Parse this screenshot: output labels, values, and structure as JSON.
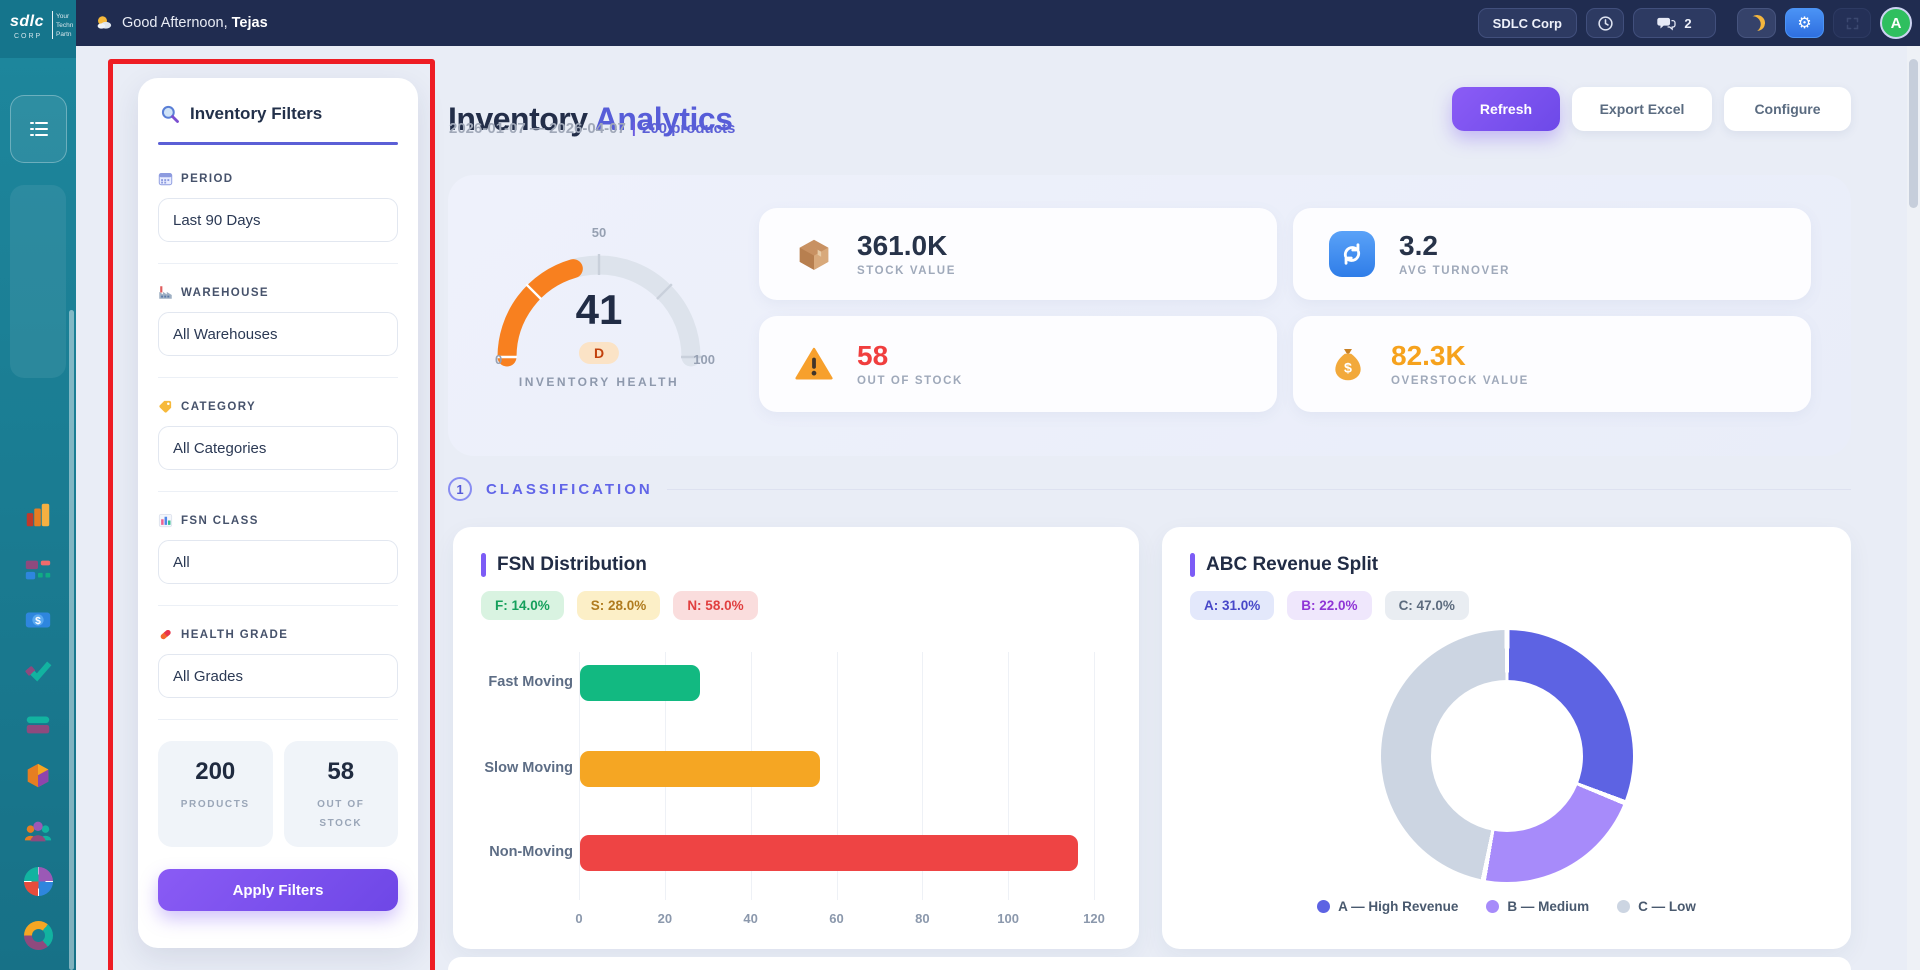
{
  "topbar": {
    "greeting": "Good Afternoon,",
    "user_name": "Tejas",
    "org_button": "SDLC Corp",
    "chat_count": "2",
    "gear_glyph": "⚙",
    "avatar_initial": "A",
    "icons": [
      "sun-cloud-icon",
      "clock-icon",
      "chat-icon",
      "moon-icon",
      "gear-icon",
      "fullscreen-icon"
    ]
  },
  "logo": {
    "brand": "sdlc",
    "sub": "CORP",
    "tag1": "Your",
    "tag2": "Techn",
    "tag3": "Partn"
  },
  "rail": {
    "icons": [
      "menu-icon",
      "bar-chart-icon",
      "tiles-icon",
      "money-icon",
      "check-icon",
      "layers-icon",
      "cube-icon",
      "people-icon",
      "pie-icon",
      "ring-icon"
    ]
  },
  "filters": {
    "title": "Inventory Filters",
    "sections": [
      {
        "icon": "calendar-icon",
        "label": "PERIOD",
        "value": "Last 90 Days"
      },
      {
        "icon": "factory-icon",
        "label": "WAREHOUSE",
        "value": "All Warehouses"
      },
      {
        "icon": "tag-icon",
        "label": "CATEGORY",
        "value": "All Categories"
      },
      {
        "icon": "bar-chart-icon",
        "label": "FSN CLASS",
        "value": "All"
      },
      {
        "icon": "pill-icon",
        "label": "HEALTH GRADE",
        "value": "All Grades"
      }
    ],
    "stats": [
      {
        "value": "200",
        "label": "PRODUCTS"
      },
      {
        "value": "58",
        "label": "OUT OF STOCK"
      }
    ],
    "apply_label": "Apply Filters"
  },
  "header": {
    "title_primary": "Inventory",
    "title_accent": "Analytics",
    "date_range": "2026-01-07 — 2026-04-07",
    "separator": "|",
    "product_count": "200 products",
    "refresh_label": "Refresh",
    "export_label": "Export Excel",
    "configure_label": "Configure"
  },
  "kpi": {
    "gauge": {
      "value": 41,
      "min": 0,
      "max": 100,
      "grade": "D",
      "label": "INVENTORY HEALTH",
      "tick_labels": [
        "0",
        "50",
        "100"
      ],
      "tick_marks": [
        0,
        25,
        50,
        75,
        100
      ],
      "color": "#f8801f",
      "track": "#dde3ec"
    },
    "cards": [
      {
        "icon": "package-icon",
        "value": "361.0K",
        "label": "STOCK VALUE",
        "value_color": "#273349"
      },
      {
        "icon": "refresh-cycle-icon",
        "value": "3.2",
        "label": "AVG TURNOVER",
        "value_color": "#273349"
      },
      {
        "icon": "warning-icon",
        "value": "58",
        "label": "OUT OF STOCK",
        "value_color": "#f03e3e"
      },
      {
        "icon": "money-bag-icon",
        "value": "82.3K",
        "label": "OVERSTOCK VALUE",
        "value_color": "#f6a21d"
      }
    ]
  },
  "section": {
    "number": "1",
    "title": "CLASSIFICATION"
  },
  "chart_data": [
    {
      "type": "bar",
      "title": "FSN Distribution",
      "orientation": "horizontal",
      "categories": [
        "Fast Moving",
        "Slow Moving",
        "Non-Moving"
      ],
      "values": [
        28,
        56,
        116
      ],
      "xlim": [
        0,
        120
      ],
      "grid": true
    },
    {
      "type": "pie",
      "title": "ABC Revenue Split",
      "categories": [
        "A — High Revenue",
        "B — Medium",
        "C — Low"
      ],
      "values": [
        31,
        22,
        47
      ],
      "legend_position": "bottom"
    }
  ],
  "fsn_chart": {
    "title": "FSN Distribution",
    "badges": [
      {
        "text": "F: 14.0%",
        "bg": "#d9f3e1",
        "fg": "#15a05c"
      },
      {
        "text": "S: 28.0%",
        "bg": "#fcefc7",
        "fg": "#b07b1e"
      },
      {
        "text": "N: 58.0%",
        "bg": "#fadddd",
        "fg": "#e13f3f"
      }
    ],
    "categories": [
      "Fast Moving",
      "Slow Moving",
      "Non-Moving"
    ],
    "values": [
      28,
      56,
      116
    ],
    "colors": [
      "#12b981",
      "#f5a623",
      "#ee4444"
    ],
    "x_ticks": [
      0,
      20,
      40,
      60,
      80,
      100,
      120
    ],
    "xmax": 120
  },
  "abc_chart": {
    "title": "ABC Revenue Split",
    "badges": [
      {
        "text": "A: 31.0%",
        "bg": "#e3e8fb",
        "fg": "#4747c8"
      },
      {
        "text": "B: 22.0%",
        "bg": "#efe7fc",
        "fg": "#8f35d6"
      },
      {
        "text": "C: 47.0%",
        "bg": "#e9edf2",
        "fg": "#5c6b7e"
      }
    ],
    "slices": [
      {
        "name": "A — High Revenue",
        "value": 31,
        "color": "#5d63e3"
      },
      {
        "name": "B — Medium",
        "value": 22,
        "color": "#a78bfa"
      },
      {
        "name": "C — Low",
        "value": 47,
        "color": "#ccd5e2"
      }
    ]
  }
}
